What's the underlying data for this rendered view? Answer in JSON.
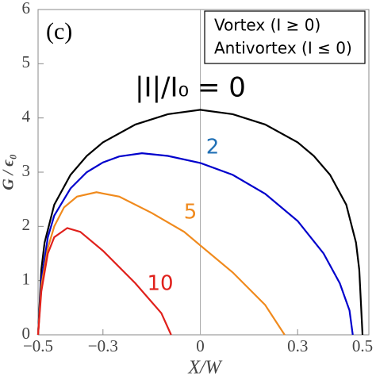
{
  "chart_data": {
    "type": "line",
    "panel_label": "(c)",
    "legend_lines": [
      "Vortex (I ≥ 0)",
      "Antivortex (I ≤ 0)"
    ],
    "xlabel": "X/W",
    "ylabel": "G / ϵ₀",
    "xlim": [
      -0.5,
      0.5
    ],
    "ylim": [
      0,
      6
    ],
    "xticks": [
      {
        "value": -0.5,
        "label": "−0.5"
      },
      {
        "value": -0.3,
        "label": "−0.3"
      },
      0,
      0.3,
      0.5
    ],
    "yticks": [
      0,
      1,
      2,
      3,
      4,
      5,
      6
    ],
    "series": [
      {
        "name": "|I|/I₀ = 0",
        "color": "#000000",
        "x": [
          -0.5,
          -0.49,
          -0.48,
          -0.45,
          -0.4,
          -0.35,
          -0.3,
          -0.2,
          -0.1,
          0,
          0.1,
          0.2,
          0.3,
          0.35,
          0.4,
          0.45,
          0.48,
          0.49,
          0.5
        ],
        "values": [
          0,
          1.2,
          1.7,
          2.4,
          2.95,
          3.3,
          3.55,
          3.88,
          4.07,
          4.15,
          4.07,
          3.88,
          3.55,
          3.3,
          2.95,
          2.4,
          1.7,
          1.2,
          0
        ]
      },
      {
        "name": "2",
        "color": "#0000cc",
        "x": [
          -0.5,
          -0.49,
          -0.47,
          -0.45,
          -0.4,
          -0.35,
          -0.3,
          -0.25,
          -0.18,
          -0.1,
          0,
          0.1,
          0.2,
          0.3,
          0.38,
          0.43,
          0.46,
          0.47
        ],
        "values": [
          0,
          1.0,
          1.8,
          2.2,
          2.7,
          3.0,
          3.18,
          3.29,
          3.35,
          3.3,
          3.17,
          2.95,
          2.6,
          2.1,
          1.5,
          0.95,
          0.45,
          0
        ]
      },
      {
        "name": "5",
        "color": "#f08a1d",
        "x": [
          -0.5,
          -0.49,
          -0.47,
          -0.45,
          -0.42,
          -0.38,
          -0.32,
          -0.25,
          -0.15,
          -0.05,
          0,
          0.1,
          0.2,
          0.26
        ],
        "values": [
          0,
          0.9,
          1.6,
          2.0,
          2.35,
          2.55,
          2.63,
          2.55,
          2.25,
          1.9,
          1.65,
          1.15,
          0.55,
          0
        ]
      },
      {
        "name": "10",
        "color": "#e0201b",
        "x": [
          -0.5,
          -0.49,
          -0.47,
          -0.45,
          -0.41,
          -0.37,
          -0.3,
          -0.2,
          -0.12,
          -0.09
        ],
        "values": [
          0,
          0.8,
          1.5,
          1.8,
          1.97,
          1.9,
          1.55,
          0.95,
          0.4,
          0
        ]
      }
    ]
  }
}
